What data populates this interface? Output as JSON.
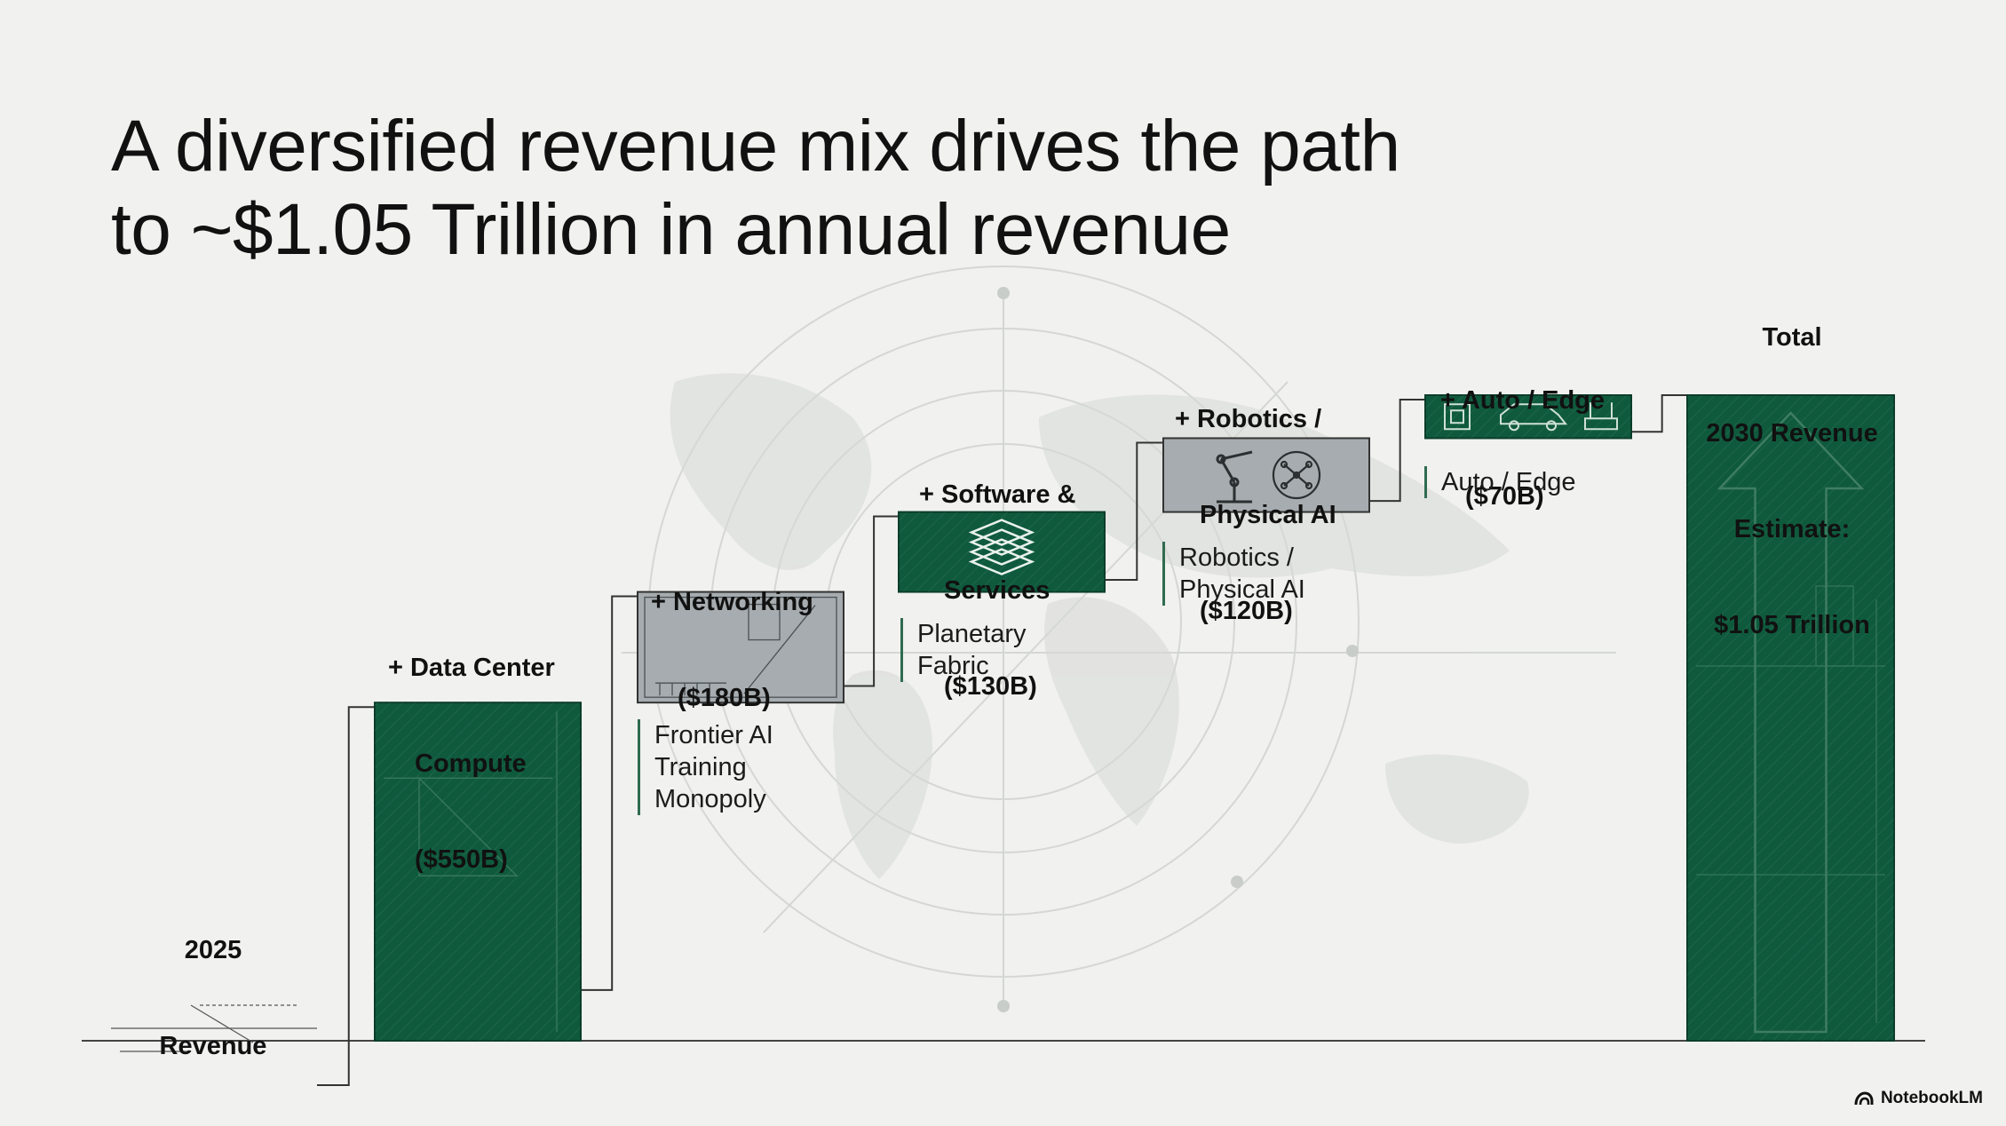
{
  "title": {
    "line1": "A diversified revenue mix drives the path",
    "line2": "to ~$1.05 Trillion in annual revenue"
  },
  "chart_data": {
    "type": "bar",
    "subtype": "waterfall",
    "title": "A diversified revenue mix drives the path to ~$1.05 Trillion in annual revenue",
    "unit": "$B",
    "categories": [
      "2025 Revenue",
      "+ Data Center Compute ($550B)",
      "+ Networking ($180B)",
      "+ Software & Services ($130B)",
      "+ Robotics / Physical AI ($120B)",
      "+ Auto / Edge ($70B)",
      "Total 2030 Revenue Estimate: $1.05 Trillion"
    ],
    "steps": [
      {
        "label_lines": [
          "2025",
          "Revenue"
        ],
        "value": null,
        "kind": "base",
        "description_lines": []
      },
      {
        "label_lines": [
          "+ Data Center",
          "Compute",
          "($550B)"
        ],
        "value": 550,
        "kind": "increment",
        "description_lines": []
      },
      {
        "label_lines": [
          "+ Networking",
          "($180B)"
        ],
        "value": 180,
        "kind": "increment",
        "description_lines": [
          "Frontier AI",
          "Training",
          "Monopoly"
        ]
      },
      {
        "label_lines": [
          "+ Software &",
          "Services",
          "($130B)"
        ],
        "value": 130,
        "kind": "increment",
        "description_lines": [
          "Planetary",
          "Fabric"
        ]
      },
      {
        "label_lines": [
          "+ Robotics /",
          "Physical AI",
          "($120B)"
        ],
        "value": 120,
        "kind": "increment",
        "description_lines": [
          "Robotics /",
          "Physical AI"
        ]
      },
      {
        "label_lines": [
          "+ Auto / Edge",
          "($70B)"
        ],
        "value": 70,
        "kind": "increment",
        "description_lines": [
          "Auto / Edge"
        ]
      },
      {
        "label_lines": [
          "Total",
          "2030 Revenue",
          "Estimate:",
          "$1.05 Trillion"
        ],
        "value": 1050,
        "kind": "total",
        "description_lines": []
      }
    ],
    "colors": {
      "bar_dark": "#0f5a3d",
      "bar_gray": "#a6acaf",
      "connector": "#333333",
      "baseline": "#444444"
    },
    "icons": {
      "networking": "blueprint-diagram-icon",
      "software": "layers-stack-icon",
      "robotics": [
        "robot-arm-icon",
        "neural-network-icon"
      ],
      "auto_edge": [
        "chip-icon",
        "car-icon",
        "router-icon"
      ],
      "total": "up-arrow-icon"
    },
    "legend": "none",
    "grid": false
  },
  "branding": {
    "label": "NotebookLM",
    "icon": "notebooklm-logo-icon"
  }
}
